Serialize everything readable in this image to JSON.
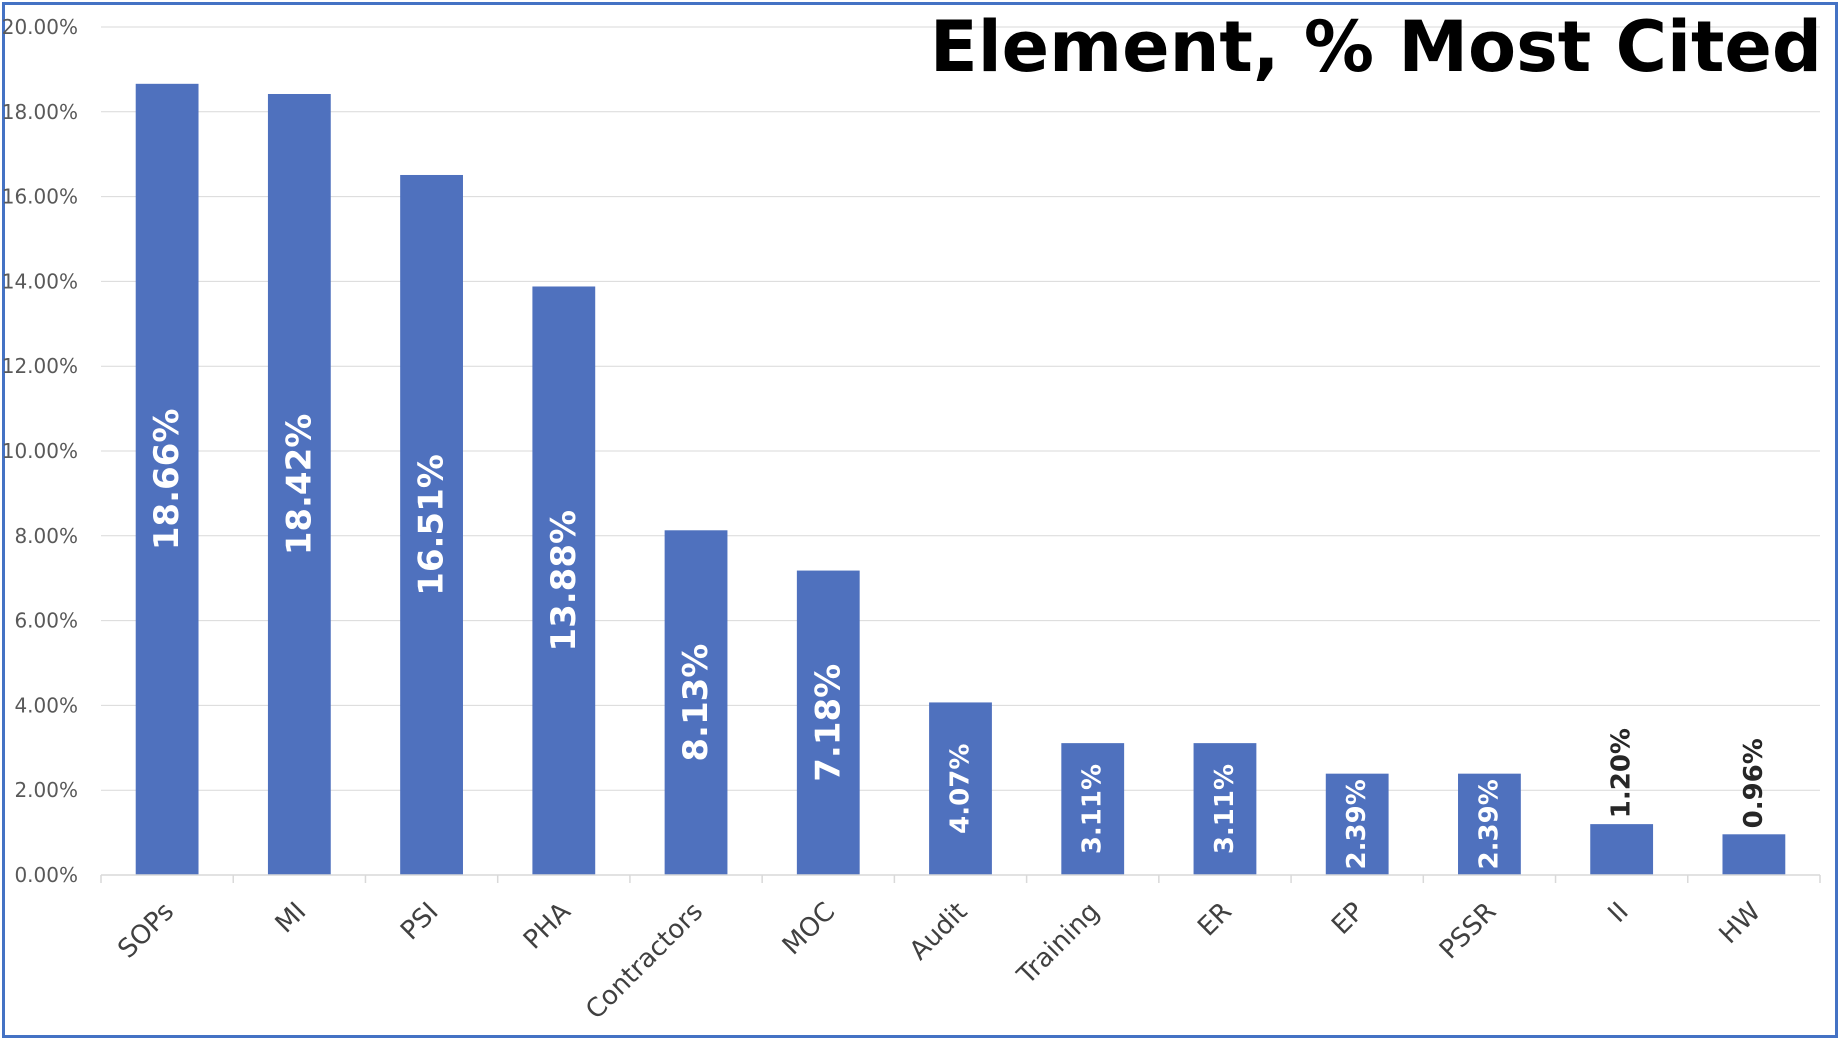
{
  "chart_data": {
    "type": "bar",
    "title": "Element, % Most Cited",
    "xlabel": "",
    "ylabel": "",
    "categories": [
      "SOPs",
      "MI",
      "PSI",
      "PHA",
      "Contractors",
      "MOC",
      "Audit",
      "Training",
      "ER",
      "EP",
      "PSSR",
      "II",
      "HW"
    ],
    "values": [
      18.66,
      18.42,
      16.51,
      13.88,
      8.13,
      7.18,
      4.07,
      3.11,
      3.11,
      2.39,
      2.39,
      1.2,
      0.96
    ],
    "data_labels": [
      "18.66%",
      "18.42%",
      "16.51%",
      "13.88%",
      "8.13%",
      "7.18%",
      "4.07%",
      "3.11%",
      "3.11%",
      "2.39%",
      "2.39%",
      "1.20%",
      "0.96%"
    ],
    "y_ticks": [
      "0.00%",
      "2.00%",
      "4.00%",
      "6.00%",
      "8.00%",
      "10.00%",
      "12.00%",
      "14.00%",
      "16.00%",
      "18.00%",
      "20.00%"
    ],
    "ylim": [
      0,
      20
    ],
    "grid": true,
    "legend": "none",
    "bar_color": "#4F71BE",
    "inside_label_color": "#FFFFFF",
    "outside_label_color": "#262626"
  }
}
